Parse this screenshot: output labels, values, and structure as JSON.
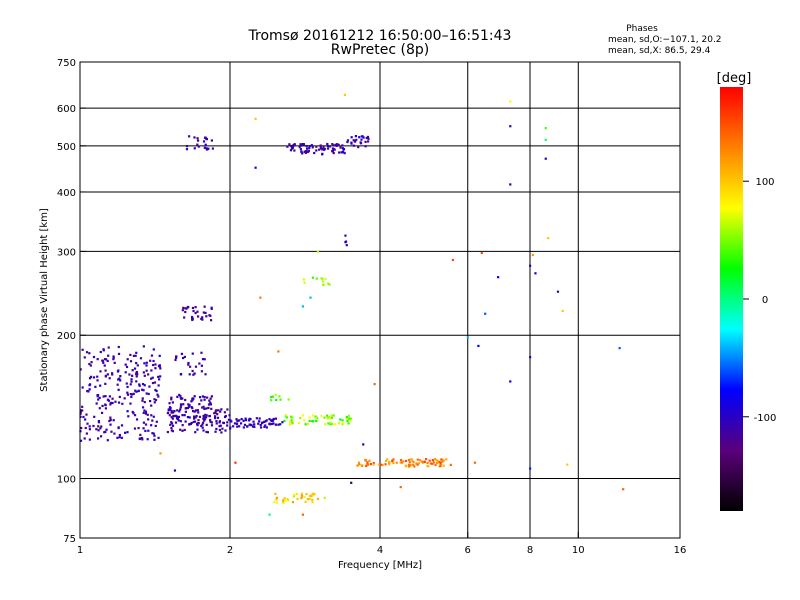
{
  "chart_data": {
    "type": "scatter",
    "title": "Tromsø 20161212 16:50:00–16:51:43",
    "subtitle": "RwPretec (8p)",
    "xlabel": "Frequency [MHz]",
    "ylabel": "Stationary phase Virtual Height [km]",
    "x_scale": "log2",
    "y_scale": "log",
    "xlim": [
      1,
      16
    ],
    "ylim": [
      75,
      750
    ],
    "x_ticks": [
      1,
      2,
      4,
      6,
      8,
      10,
      16
    ],
    "y_ticks": [
      75,
      100,
      200,
      300,
      400,
      500,
      600,
      750
    ],
    "grid": true,
    "phase_block": {
      "heading": "Phases",
      "line_o": "mean, sd,O:−107.1, 20.2",
      "line_x": "mean, sd,X:  86.5, 29.4"
    },
    "colorbar": {
      "label": "[deg]",
      "range": [
        -180,
        180
      ],
      "ticks": [
        100,
        0,
        -100
      ],
      "colors": [
        "#000000",
        "#5a007a",
        "#0000ff",
        "#00ffff",
        "#00ff00",
        "#ffff00",
        "#ff8000",
        "#ff0000"
      ]
    },
    "clusters": [
      {
        "x": [
          1.0,
          1.45
        ],
        "y": [
          120,
          190
        ],
        "n": 260,
        "phase": [
          -125,
          -95
        ]
      },
      {
        "x": [
          1.5,
          1.85
        ],
        "y": [
          125,
          150
        ],
        "n": 140,
        "phase": [
          -125,
          -95
        ]
      },
      {
        "x": [
          1.55,
          1.8
        ],
        "y": [
          165,
          185
        ],
        "n": 25,
        "phase": [
          -125,
          -95
        ]
      },
      {
        "x": [
          1.85,
          2.0
        ],
        "y": [
          125,
          140
        ],
        "n": 35,
        "phase": [
          -125,
          -100
        ]
      },
      {
        "x": [
          2.0,
          2.55
        ],
        "y": [
          128,
          134
        ],
        "n": 65,
        "phase": [
          -115,
          -95
        ]
      },
      {
        "x": [
          2.55,
          3.5
        ],
        "y": [
          130,
          136
        ],
        "n": 60,
        "phase": [
          20,
          90
        ]
      },
      {
        "x": [
          2.4,
          2.65
        ],
        "y": [
          145,
          152
        ],
        "n": 8,
        "phase": [
          20,
          70
        ]
      },
      {
        "x": [
          3.6,
          5.6
        ],
        "y": [
          106,
          110
        ],
        "n": 90,
        "phase": [
          100,
          160
        ]
      },
      {
        "x": [
          2.45,
          3.1
        ],
        "y": [
          89,
          93
        ],
        "n": 35,
        "phase": [
          60,
          120
        ]
      },
      {
        "x": [
          1.6,
          1.85
        ],
        "y": [
          215,
          230
        ],
        "n": 30,
        "phase": [
          -140,
          -100
        ]
      },
      {
        "x": [
          1.62,
          1.85
        ],
        "y": [
          490,
          525
        ],
        "n": 22,
        "phase": [
          -130,
          -90
        ]
      },
      {
        "x": [
          2.6,
          3.4
        ],
        "y": [
          480,
          505
        ],
        "n": 80,
        "phase": [
          -130,
          -90
        ]
      },
      {
        "x": [
          3.4,
          3.8
        ],
        "y": [
          495,
          525
        ],
        "n": 25,
        "phase": [
          -120,
          -90
        ]
      },
      {
        "x": [
          2.8,
          3.2
        ],
        "y": [
          255,
          265
        ],
        "n": 12,
        "phase": [
          30,
          70
        ]
      },
      {
        "x": [
          3.4,
          3.45
        ],
        "y": [
          305,
          330
        ],
        "n": 4,
        "phase": [
          -120,
          -100
        ]
      }
    ],
    "points": [
      {
        "x": 7.3,
        "y": 620,
        "phase": 80
      },
      {
        "x": 7.3,
        "y": 550,
        "phase": -100
      },
      {
        "x": 7.3,
        "y": 415,
        "phase": -110
      },
      {
        "x": 8.6,
        "y": 545,
        "phase": 40
      },
      {
        "x": 8.6,
        "y": 515,
        "phase": 0
      },
      {
        "x": 8.6,
        "y": 470,
        "phase": -100
      },
      {
        "x": 8.7,
        "y": 320,
        "phase": 100
      },
      {
        "x": 8.1,
        "y": 295,
        "phase": 120
      },
      {
        "x": 8.0,
        "y": 280,
        "phase": -100
      },
      {
        "x": 8.2,
        "y": 270,
        "phase": -100
      },
      {
        "x": 9.1,
        "y": 247,
        "phase": -110
      },
      {
        "x": 9.3,
        "y": 225,
        "phase": 100
      },
      {
        "x": 6.9,
        "y": 265,
        "phase": -80
      },
      {
        "x": 6.4,
        "y": 298,
        "phase": 150
      },
      {
        "x": 5.6,
        "y": 288,
        "phase": 150
      },
      {
        "x": 6.5,
        "y": 222,
        "phase": -60
      },
      {
        "x": 6.0,
        "y": 198,
        "phase": -40
      },
      {
        "x": 6.3,
        "y": 190,
        "phase": -80
      },
      {
        "x": 7.3,
        "y": 160,
        "phase": -80
      },
      {
        "x": 8.0,
        "y": 180,
        "phase": -110
      },
      {
        "x": 12.1,
        "y": 188,
        "phase": -60
      },
      {
        "x": 12.3,
        "y": 95,
        "phase": 140
      },
      {
        "x": 9.5,
        "y": 107,
        "phase": 100
      },
      {
        "x": 8.0,
        "y": 105,
        "phase": -70
      },
      {
        "x": 6.2,
        "y": 108,
        "phase": 140
      },
      {
        "x": 4.4,
        "y": 96,
        "phase": 140
      },
      {
        "x": 3.9,
        "y": 158,
        "phase": 140
      },
      {
        "x": 3.7,
        "y": 118,
        "phase": -100
      },
      {
        "x": 3.5,
        "y": 98,
        "phase": -150
      },
      {
        "x": 2.8,
        "y": 84,
        "phase": 140
      },
      {
        "x": 2.4,
        "y": 84,
        "phase": 0
      },
      {
        "x": 2.25,
        "y": 450,
        "phase": -100
      },
      {
        "x": 2.25,
        "y": 570,
        "phase": 100
      },
      {
        "x": 2.3,
        "y": 240,
        "phase": 130
      },
      {
        "x": 2.5,
        "y": 185,
        "phase": 130
      },
      {
        "x": 2.05,
        "y": 108,
        "phase": 160
      },
      {
        "x": 1.55,
        "y": 104,
        "phase": -100
      },
      {
        "x": 1.45,
        "y": 113,
        "phase": 120
      },
      {
        "x": 2.8,
        "y": 230,
        "phase": -40
      },
      {
        "x": 2.9,
        "y": 240,
        "phase": -40
      },
      {
        "x": 3.0,
        "y": 300,
        "phase": 60
      },
      {
        "x": 3.4,
        "y": 640,
        "phase": 100
      }
    ]
  }
}
